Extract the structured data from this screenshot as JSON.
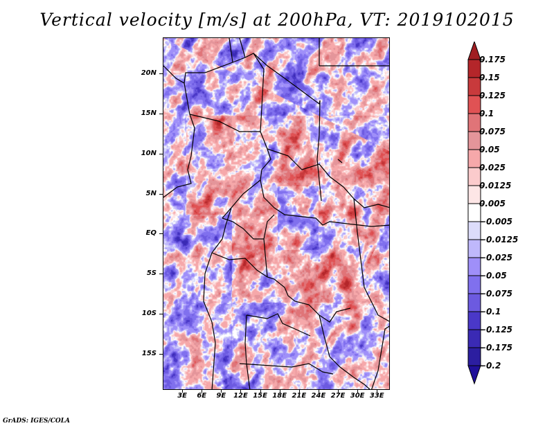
{
  "title": "Vertical velocity [m/s] at 200hPa, VT: 2019102015",
  "footer": "GrADS: IGES/COLA",
  "map": {
    "variable": "Vertical velocity",
    "units": "m/s",
    "level": "200hPa",
    "valid_time": "2019102015",
    "lat_range": [
      -19.5,
      24.5
    ],
    "lon_range": [
      0,
      35
    ],
    "y_axis_labels": [
      {
        "label": "20N",
        "lat": 20
      },
      {
        "label": "15N",
        "lat": 15
      },
      {
        "label": "10N",
        "lat": 10
      },
      {
        "label": "5N",
        "lat": 5
      },
      {
        "label": "EQ",
        "lat": 0
      },
      {
        "label": "5S",
        "lat": -5
      },
      {
        "label": "10S",
        "lat": -10
      },
      {
        "label": "15S",
        "lat": -15
      }
    ],
    "x_axis_labels": [
      {
        "label": "3E",
        "lon": 3
      },
      {
        "label": "6E",
        "lon": 6
      },
      {
        "label": "9E",
        "lon": 9
      },
      {
        "label": "12E",
        "lon": 12
      },
      {
        "label": "15E",
        "lon": 15
      },
      {
        "label": "18E",
        "lon": 18
      },
      {
        "label": "21E",
        "lon": 21
      },
      {
        "label": "24E",
        "lon": 24
      },
      {
        "label": "27E",
        "lon": 27
      },
      {
        "label": "30E",
        "lon": 30
      },
      {
        "label": "33E",
        "lon": 33
      }
    ]
  },
  "colorbar": {
    "levels": [
      "0.175",
      "0.15",
      "0.125",
      "0.1",
      "0.075",
      "0.05",
      "0.025",
      "0.0125",
      "0.005",
      "-0.005",
      "-0.0125",
      "-0.025",
      "-0.05",
      "-0.075",
      "-0.1",
      "-0.125",
      "-0.175",
      "-0.2"
    ],
    "colors": [
      "#a01e22",
      "#b4262a",
      "#c83a3c",
      "#e05254",
      "#e07478",
      "#e4959a",
      "#f6a8aa",
      "#fbcbcc",
      "#fde6e6",
      "#ffffff",
      "#dcdcfa",
      "#bfb8fb",
      "#9f8ff9",
      "#8070ee",
      "#6c5ae0",
      "#4a38c8",
      "#3a2ab4",
      "#2c1ea0",
      "#20109a"
    ]
  }
}
